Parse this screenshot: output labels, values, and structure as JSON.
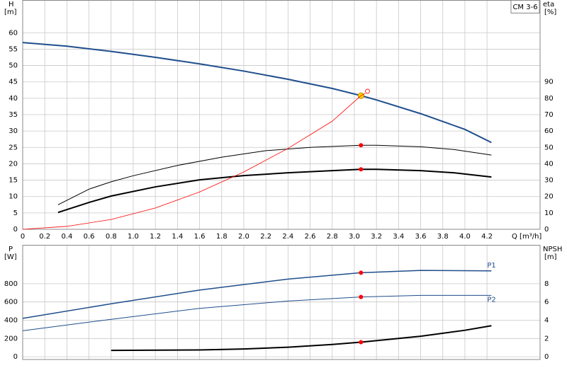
{
  "chart_data": [
    {
      "type": "line",
      "title": "CM 3-6",
      "ylabel": "H",
      "ylabel_unit": "[m]",
      "y2label": "eta",
      "y2label_unit": "[%]",
      "xlabel": "Q [m³/h]",
      "xlim": [
        0,
        4.68
      ],
      "xticks": [
        0,
        0.2,
        0.4,
        0.6,
        0.8,
        {
          "value": 1,
          "label": "1.0"
        },
        1.2,
        1.4,
        1.6,
        1.8,
        {
          "value": 2,
          "label": "2.0"
        },
        2.2,
        2.4,
        2.6,
        2.8,
        {
          "value": 3,
          "label": "3.0"
        },
        3.2,
        3.4,
        3.6,
        3.8,
        {
          "value": 4,
          "label": "4.0"
        },
        4.2
      ],
      "ylim": [
        0,
        70
      ],
      "yticks": [
        0,
        5,
        10,
        15,
        20,
        25,
        30,
        35,
        40,
        45,
        50,
        55,
        60
      ],
      "y2lim": [
        0,
        140
      ],
      "y2ticks": [
        0,
        10,
        20,
        30,
        40,
        50,
        60,
        70,
        80,
        90
      ],
      "grid": true,
      "series": [
        {
          "color": "#1f4e8c",
          "width": 2,
          "x": [
            0,
            0.4,
            0.8,
            1.2,
            1.6,
            2.0,
            2.4,
            2.8,
            3.06,
            3.2,
            3.6,
            4.0,
            4.24
          ],
          "values": [
            57,
            55.9,
            54.3,
            52.5,
            50.5,
            48.3,
            45.8,
            43,
            40.8,
            39.5,
            35.3,
            30.5,
            26.5
          ],
          "point": {
            "x": 3.06,
            "y": 40.8,
            "color": "#ffd700"
          }
        },
        {
          "axis": "y2",
          "color": "#000000",
          "width": 1,
          "x": [
            0.32,
            0.6,
            0.8,
            1.0,
            1.4,
            1.8,
            2.2,
            2.6,
            3.06,
            3.2,
            3.6,
            3.9,
            4.24
          ],
          "values": [
            15,
            24.5,
            29,
            32.7,
            39,
            44,
            48,
            50,
            51.3,
            51.3,
            50.4,
            48.7,
            45.3
          ],
          "point": {
            "x": 3.06,
            "y": 51.3,
            "color": "#ff0000"
          }
        },
        {
          "axis": "y2",
          "color": "#000000",
          "width": 2,
          "x": [
            0.32,
            0.6,
            0.8,
            1.2,
            1.6,
            2.0,
            2.4,
            2.8,
            3.06,
            3.2,
            3.6,
            3.9,
            4.24
          ],
          "values": [
            10.3,
            16.4,
            20.3,
            25.9,
            30.2,
            32.8,
            34.5,
            35.8,
            36.6,
            36.6,
            35.8,
            34.5,
            31.9
          ],
          "point": {
            "x": 3.06,
            "y": 36.6,
            "color": "#ff0000"
          }
        },
        {
          "color": "#ff0000",
          "width": 0.8,
          "x": [
            0,
            0.4,
            0.8,
            1.2,
            1.6,
            2.0,
            2.4,
            2.8,
            3.06,
            3.1
          ],
          "values": [
            0,
            0.9,
            3,
            6.5,
            11.4,
            17.5,
            24.7,
            33,
            40.8,
            41.5
          ]
        }
      ]
    },
    {
      "type": "line",
      "ylabel": "P",
      "ylabel_unit": "[W]",
      "y2label": "NPSH",
      "y2label_unit": "[m]",
      "xlim": [
        0,
        4.68
      ],
      "ylim": [
        -30,
        1225
      ],
      "yticks": [
        0,
        200,
        400,
        600,
        800
      ],
      "y2lim": [
        -0.3,
        12.25
      ],
      "y2ticks": [
        0,
        2,
        4,
        6,
        8
      ],
      "grid": true,
      "series": [
        {
          "name": "P1",
          "color": "#1f4e8c",
          "width": 1.5,
          "x": [
            0,
            0.8,
            1.6,
            2.4,
            3.06,
            3.6,
            4.24
          ],
          "values": [
            420,
            580,
            730,
            850,
            920,
            945,
            940
          ],
          "point": {
            "x": 3.06,
            "y": 920,
            "color": "#ff0000"
          }
        },
        {
          "name": "P2",
          "color": "#1f4e8c",
          "width": 1,
          "x": [
            0,
            0.8,
            1.6,
            2.4,
            3.06,
            3.6,
            4.24
          ],
          "values": [
            285,
            410,
            530,
            610,
            655,
            672,
            672
          ],
          "point": {
            "x": 3.06,
            "y": 655,
            "color": "#ff0000"
          }
        },
        {
          "axis": "y2",
          "color": "#000000",
          "width": 2,
          "x": [
            0.8,
            1.6,
            2.0,
            2.4,
            2.8,
            3.06,
            3.6,
            4.0,
            4.24
          ],
          "values": [
            0.7,
            0.75,
            0.85,
            1.05,
            1.35,
            1.6,
            2.25,
            2.9,
            3.4
          ],
          "point": {
            "x": 3.06,
            "y": 1.6,
            "color": "#ff0000"
          }
        }
      ]
    }
  ]
}
